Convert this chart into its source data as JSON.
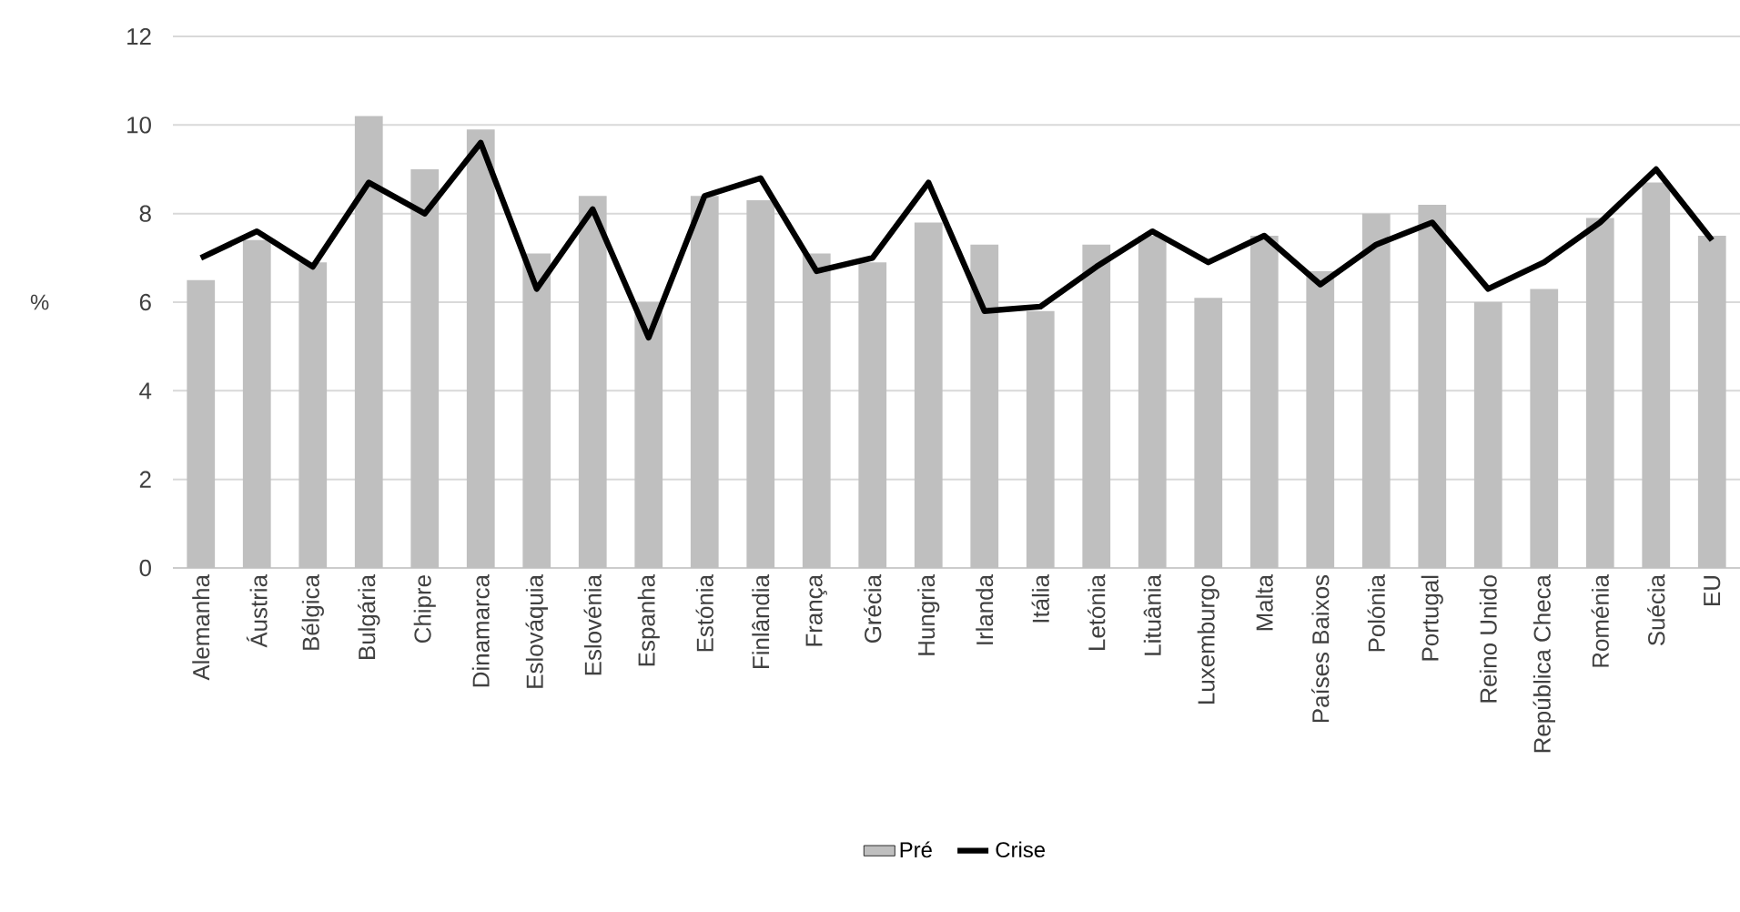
{
  "chart_data": {
    "type": "bar",
    "ylabel": "%",
    "categories": [
      "Alemanha",
      "Áustria",
      "Bélgica",
      "Bulgária",
      "Chipre",
      "Dinamarca",
      "Eslováquia",
      "Eslovénia",
      "Espanha",
      "Estónia",
      "Finlândia",
      "França",
      "Grécia",
      "Hungria",
      "Irlanda",
      "Itália",
      "Letónia",
      "Lituânia",
      "Luxemburgo",
      "Malta",
      "Países Baixos",
      "Polónia",
      "Portugal",
      "Reino Unido",
      "República Checa",
      "Roménia",
      "Suécia",
      "EU"
    ],
    "series": [
      {
        "name": "Pré",
        "color": "#bfbfbf",
        "values": [
          6.5,
          7.4,
          6.9,
          10.2,
          9.0,
          9.9,
          7.1,
          8.4,
          6.0,
          8.4,
          8.3,
          7.1,
          6.9,
          7.8,
          7.3,
          5.8,
          7.3,
          7.5,
          6.1,
          7.5,
          6.7,
          8.0,
          8.2,
          6.0,
          6.3,
          7.9,
          8.7,
          7.5
        ]
      },
      {
        "name": "Crise",
        "type": "line",
        "color": "#000000",
        "values": [
          7.0,
          7.6,
          6.8,
          8.7,
          8.0,
          9.6,
          6.3,
          8.1,
          5.2,
          8.4,
          8.8,
          6.7,
          7.0,
          8.7,
          5.8,
          5.9,
          6.8,
          7.6,
          6.9,
          7.5,
          6.4,
          7.3,
          7.8,
          6.3,
          6.9,
          7.8,
          9.0,
          7.4
        ]
      }
    ],
    "ylim": [
      0,
      12
    ],
    "yticks": [
      0,
      2,
      4,
      6,
      8,
      10,
      12
    ],
    "grid": "y",
    "legend": "bottom"
  }
}
